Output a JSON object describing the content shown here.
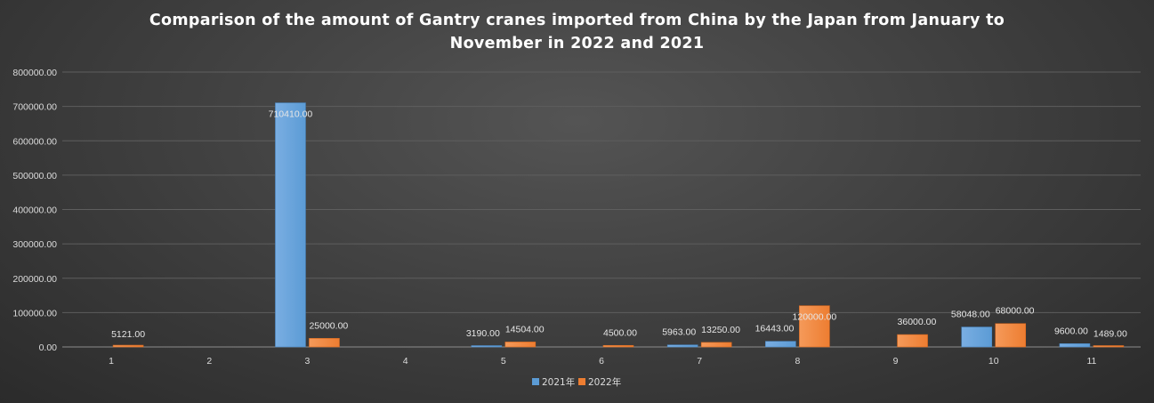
{
  "chart_data": {
    "type": "bar",
    "title": "Comparison of the amount of Gantry cranes imported from China by the Japan from January to November in 2022 and 2021",
    "xlabel": "",
    "ylabel": "",
    "categories": [
      "1",
      "2",
      "3",
      "4",
      "5",
      "6",
      "7",
      "8",
      "9",
      "10",
      "11"
    ],
    "series": [
      {
        "name": "2021年",
        "color": "#5b9bd5",
        "values": [
          null,
          null,
          710410,
          null,
          3190,
          null,
          5963,
          16443,
          null,
          58048,
          9600
        ],
        "labels": [
          "",
          "",
          "710410.00",
          "",
          "3190.00",
          "",
          "5963.00",
          "16443.00",
          "",
          "58048.00",
          "9600.00"
        ]
      },
      {
        "name": "2022年",
        "color": "#ed7d31",
        "values": [
          5121,
          null,
          25000,
          null,
          14504,
          4500,
          13250,
          120000,
          36000,
          68000,
          1489
        ],
        "labels": [
          "5121.00",
          "",
          "25000.00",
          "",
          "14504.00",
          "4500.00",
          "13250.00",
          "120000.00",
          "36000.00",
          "68000.00",
          "1489.00"
        ]
      }
    ],
    "ylim": [
      0,
      800000
    ],
    "yticks": [
      "0.00",
      "100000.00",
      "200000.00",
      "300000.00",
      "400000.00",
      "500000.00",
      "600000.00",
      "700000.00",
      "800000.00"
    ],
    "grid": true,
    "legend_position": "bottom"
  }
}
